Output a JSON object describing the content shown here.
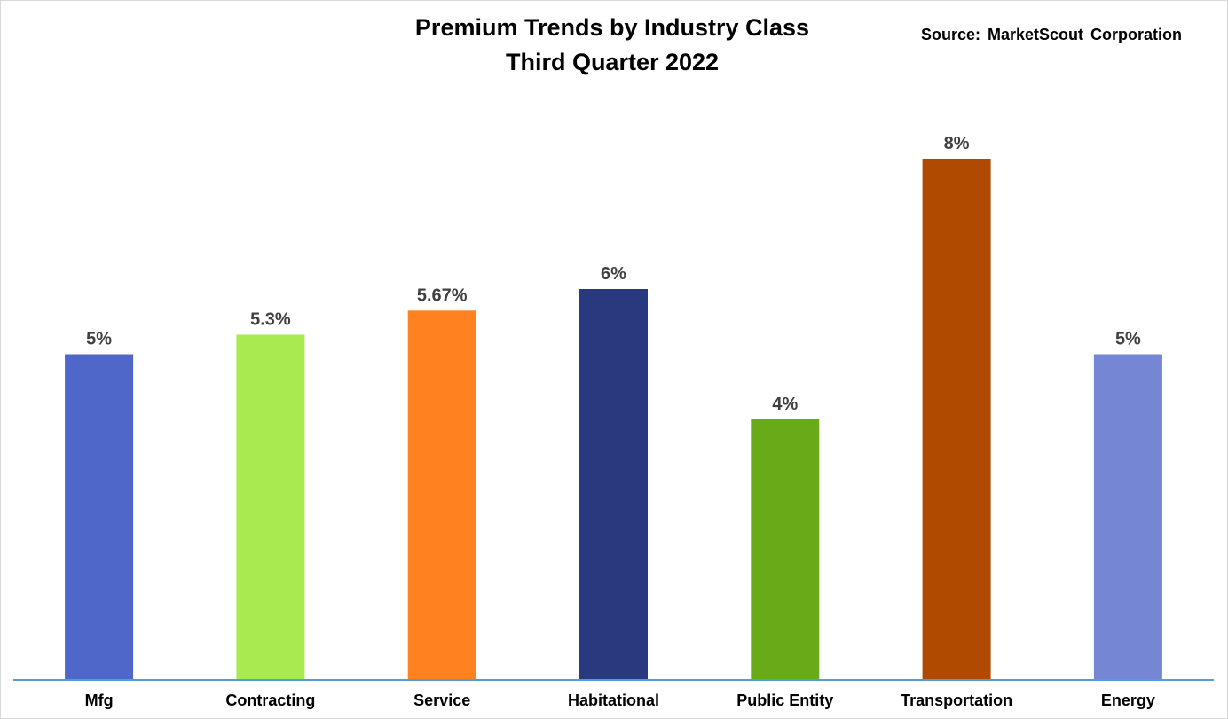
{
  "chart_data": {
    "type": "bar",
    "title": "Premium Trends by Industry Class",
    "subtitle": "Third Quarter 2022",
    "source": "Source: MarketScout Corporation",
    "categories": [
      "Mfg",
      "Contracting",
      "Service",
      "Habitational",
      "Public Entity",
      "Transportation",
      "Energy"
    ],
    "values": [
      5,
      5.3,
      5.67,
      6,
      4,
      8,
      5
    ],
    "data_labels": [
      "5%",
      "5.3%",
      "5.67%",
      "6%",
      "4%",
      "8%",
      "5%"
    ],
    "colors": [
      "#4F67C8",
      "#A8EA50",
      "#FF8120",
      "#283A7D",
      "#69AA18",
      "#AF4A00",
      "#7586D5"
    ],
    "ylim": [
      0,
      8
    ],
    "xlabel": "",
    "ylabel": "",
    "grid": false,
    "axis_color": "#5B9BD5"
  }
}
